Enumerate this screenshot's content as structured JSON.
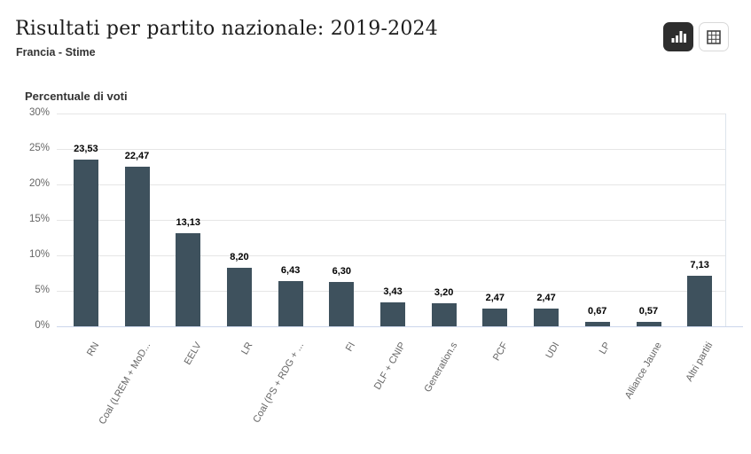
{
  "header": {
    "title": "Risultati per partito nazionale: 2019-2024",
    "subtitle": "Francia - Stime"
  },
  "toolbar": {
    "chart_view_icon": "bar-chart-icon",
    "table_view_icon": "table-grid-icon",
    "active_view": "chart"
  },
  "chart_data": {
    "type": "bar",
    "title": "Risultati per partito nazionale: 2019-2024",
    "subtitle": "Francia - Stime",
    "ylabel": "Percentuale di voti",
    "xlabel": "",
    "legend_position": "none",
    "grid": true,
    "categories": [
      "RN",
      "Coal (LREM + MoD...",
      "EELV",
      "LR",
      "Coal (PS + RDG + ...",
      "FI",
      "DLF + CNIP",
      "Generation.s",
      "PCF",
      "UDI",
      "LP",
      "Alliance Jaune",
      "Altri partiti"
    ],
    "values": [
      23.53,
      22.47,
      13.13,
      8.2,
      6.43,
      6.3,
      3.43,
      3.2,
      2.47,
      2.47,
      0.67,
      0.57,
      7.13
    ],
    "value_labels": [
      "23,53",
      "22,47",
      "13,13",
      "8,20",
      "6,43",
      "6,30",
      "3,43",
      "3,20",
      "2,47",
      "2,47",
      "0,67",
      "0,57",
      "7,13"
    ],
    "yticks": [
      0,
      5,
      10,
      15,
      20,
      25,
      30
    ],
    "ytick_labels": [
      "0%",
      "5%",
      "10%",
      "15%",
      "20%",
      "25%",
      "30%"
    ],
    "ylim": [
      0,
      30
    ],
    "colors": {
      "bar": "#3e515d",
      "gridline": "#e6e6e6",
      "baseline": "#ccd6eb",
      "right_border": "#dde4ec",
      "tick_label": "#666666",
      "value_label": "#000000",
      "axis_title": "#333333"
    }
  }
}
